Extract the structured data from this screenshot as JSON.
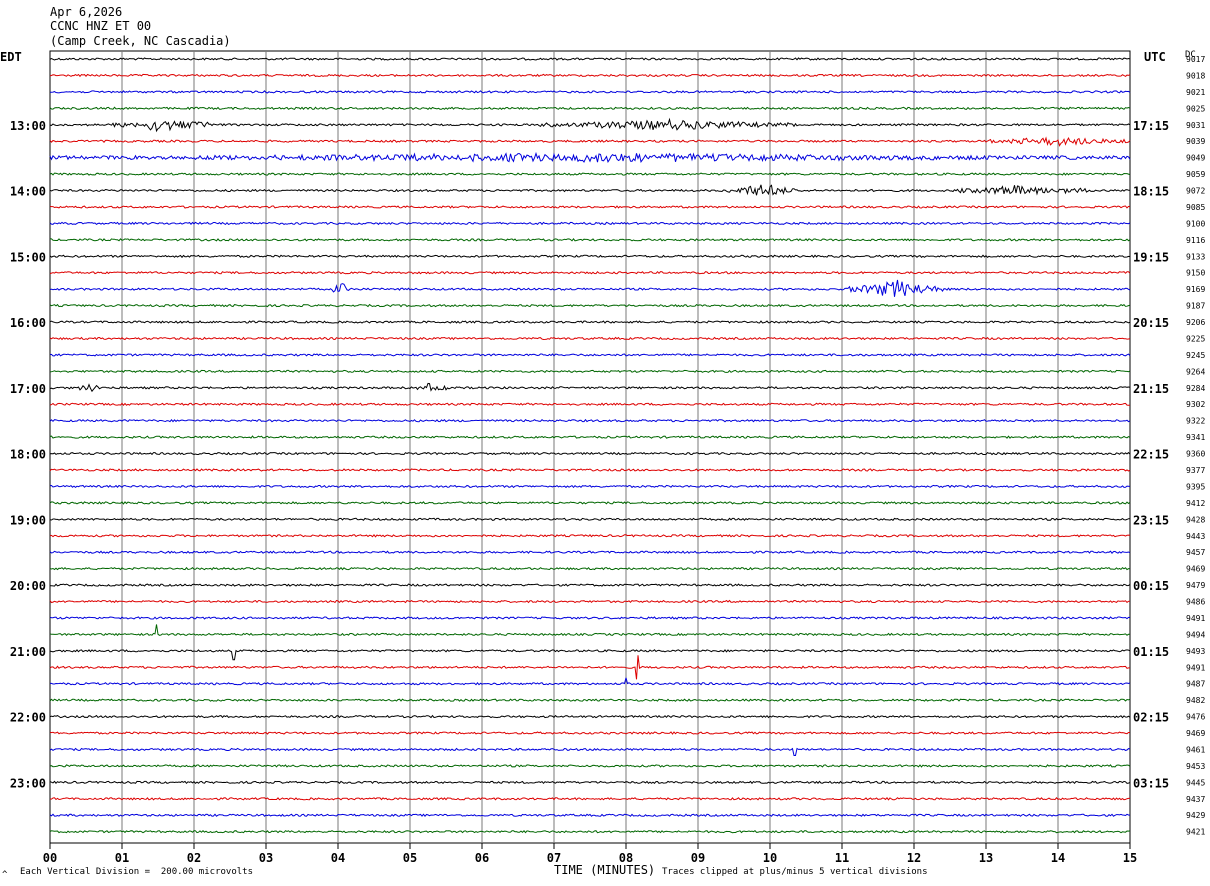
{
  "header": {
    "date": "Apr 6,2026",
    "station": "CCNC HNZ ET 00",
    "location": "(Camp Creek, NC Cascadia)"
  },
  "chart_data": {
    "type": "line",
    "title": "CCNC HNZ ET 00",
    "xlabel": "TIME (MINUTES)",
    "x_ticks": [
      "00",
      "01",
      "02",
      "03",
      "04",
      "05",
      "06",
      "07",
      "08",
      "09",
      "10",
      "11",
      "12",
      "13",
      "14",
      "15"
    ],
    "xlim": [
      0,
      15
    ],
    "left_axis_label": "EDT",
    "right_axis_label": "UTC",
    "dc_label": "DC",
    "left_hour_labels": [
      "13:00",
      "14:00",
      "15:00",
      "16:00",
      "17:00",
      "18:00",
      "19:00",
      "20:00",
      "21:00",
      "22:00",
      "23:00"
    ],
    "right_hour_labels": [
      "17:15",
      "18:15",
      "19:15",
      "20:15",
      "21:15",
      "22:15",
      "23:15",
      "00:15",
      "01:15",
      "02:15",
      "03:15"
    ],
    "dc_offsets": [
      "9017",
      "9018",
      "9021",
      "9025",
      "9031",
      "9039",
      "9049",
      "9059",
      "9072",
      "9085",
      "9100",
      "9116",
      "9133",
      "9150",
      "9169",
      "9187",
      "9206",
      "9225",
      "9245",
      "9264",
      "9284",
      "9302",
      "9322",
      "9341",
      "9360",
      "9377",
      "9395",
      "9412",
      "9428",
      "9443",
      "9457",
      "9469",
      "9479",
      "9486",
      "9491",
      "9494",
      "9493",
      "9491",
      "9487",
      "9482",
      "9476",
      "9469",
      "9461",
      "9453",
      "9445",
      "9437",
      "9429",
      "9421"
    ],
    "trace_colors": [
      "#000000",
      "#dd0000",
      "#0000dd",
      "#006600"
    ],
    "trace_count": 48,
    "first_hour_label_row": 4,
    "events": [
      {
        "row": 4,
        "start": 0.85,
        "end": 2.2,
        "amp": 7
      },
      {
        "row": 4,
        "start": 6.8,
        "end": 10.4,
        "amp": 5
      },
      {
        "row": 5,
        "start": 13.0,
        "end": 15.0,
        "amp": 4
      },
      {
        "row": 6,
        "start": 0.0,
        "end": 15.0,
        "amp": 4
      },
      {
        "row": 8,
        "start": 9.4,
        "end": 10.4,
        "amp": 7
      },
      {
        "row": 8,
        "start": 12.6,
        "end": 14.4,
        "amp": 5
      },
      {
        "row": 14,
        "start": 3.9,
        "end": 4.2,
        "amp": 8
      },
      {
        "row": 14,
        "start": 11.1,
        "end": 12.4,
        "amp": 10
      },
      {
        "row": 20,
        "start": 0.4,
        "end": 0.7,
        "amp": 6
      },
      {
        "row": 20,
        "start": 5.1,
        "end": 5.5,
        "amp": 5
      }
    ],
    "spikes": [
      {
        "row": 35,
        "t": 1.48,
        "amp": 10
      },
      {
        "row": 36,
        "t": 2.56,
        "amp": 9
      },
      {
        "row": 37,
        "t": 8.15,
        "amp": 12
      },
      {
        "row": 38,
        "t": 8.0,
        "amp": 6
      },
      {
        "row": 42,
        "t": 10.35,
        "amp": 6
      }
    ],
    "footer": {
      "vertical_division": "Each Vertical Division =  200.00 microvolts",
      "clip_note": "Traces clipped at plus/minus 5 vertical divisions",
      "corner_mark": "^"
    }
  }
}
